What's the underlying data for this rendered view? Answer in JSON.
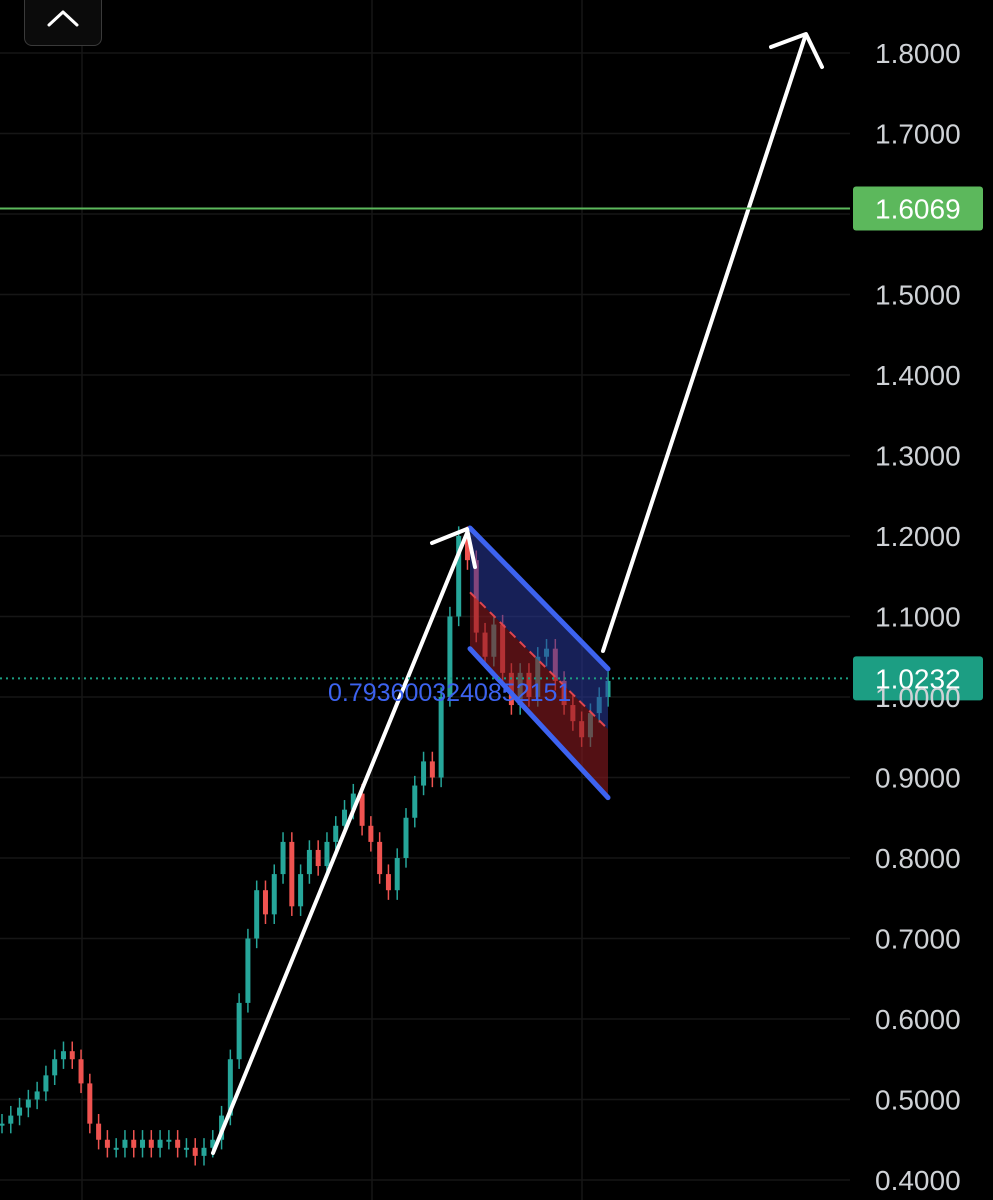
{
  "toolbar": {
    "collapse_icon": "chevron-up-icon"
  },
  "chart_data": {
    "type": "candlestick",
    "ylim": [
      0.4,
      1.8
    ],
    "y_ticks": [
      "0.4000",
      "0.5000",
      "0.6000",
      "0.7000",
      "0.8000",
      "0.9000",
      "1.0000",
      "1.1000",
      "1.2000",
      "1.3000",
      "1.4000",
      "1.5000",
      "1.7000",
      "1.8000"
    ],
    "grid": true,
    "price_lines": [
      {
        "label": "1.6069",
        "value": 1.6069,
        "color": "#5cb85c",
        "style": "solid"
      },
      {
        "label": "1.0232",
        "value": 1.0232,
        "color": "#1c9e83",
        "style": "dotted"
      }
    ],
    "floating_label": "0.7936003240852151",
    "colors": {
      "up": "#26a69a",
      "down": "#ef5350",
      "channel_line": "#3d63f0",
      "arrow": "#ffffff"
    },
    "candles_close_path": [
      0.47,
      0.48,
      0.49,
      0.5,
      0.51,
      0.53,
      0.55,
      0.56,
      0.55,
      0.52,
      0.47,
      0.45,
      0.44,
      0.44,
      0.45,
      0.44,
      0.45,
      0.44,
      0.45,
      0.45,
      0.44,
      0.44,
      0.43,
      0.44,
      0.45,
      0.48,
      0.55,
      0.62,
      0.7,
      0.76,
      0.73,
      0.78,
      0.82,
      0.74,
      0.78,
      0.81,
      0.79,
      0.82,
      0.84,
      0.86,
      0.88,
      0.84,
      0.82,
      0.78,
      0.76,
      0.8,
      0.85,
      0.89,
      0.92,
      0.9,
      1.0,
      1.1,
      1.2,
      1.17,
      1.08,
      1.05,
      1.09,
      1.03,
      0.99,
      1.03,
      1.0,
      1.05,
      1.06,
      1.02,
      0.99,
      0.97,
      0.95,
      0.98,
      1.0,
      1.02
    ],
    "pattern": {
      "channel_upper": [
        [
          1.21,
          0
        ],
        [
          1.035,
          1
        ]
      ],
      "channel_lower": [
        [
          1.06,
          0
        ],
        [
          0.875,
          1
        ]
      ],
      "channel_mid": [
        [
          1.13,
          0
        ],
        [
          0.96,
          1
        ]
      ]
    }
  }
}
